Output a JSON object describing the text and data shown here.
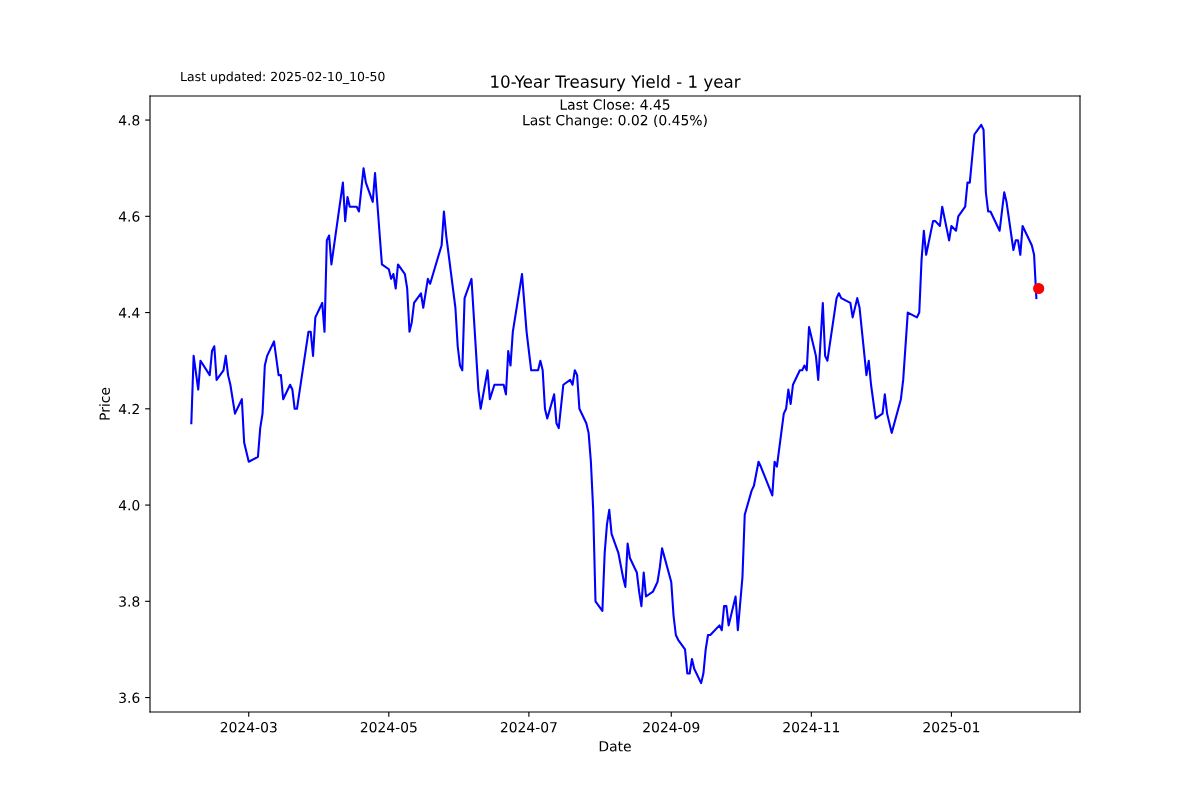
{
  "chart_data": {
    "type": "line",
    "title": "10-Year Treasury Yield - 1 year",
    "xlabel": "Date",
    "ylabel": "Price",
    "annotations": [
      "Last updated: 2025-02-10_10-50",
      "Last Close: 4.45\nLast Change: 0.02 (0.45%)"
    ],
    "series": [
      {
        "color": "#0000ff",
        "x": [
          "2024-02-05",
          "2024-02-06",
          "2024-02-08",
          "2024-02-09",
          "2024-02-13",
          "2024-02-14",
          "2024-02-15",
          "2024-02-16",
          "2024-02-19",
          "2024-02-20",
          "2024-02-21",
          "2024-02-22",
          "2024-02-24",
          "2024-02-27",
          "2024-02-28",
          "2024-03-01",
          "2024-03-05",
          "2024-03-06",
          "2024-03-07",
          "2024-03-08",
          "2024-03-09",
          "2024-03-12",
          "2024-03-14",
          "2024-03-15",
          "2024-03-16",
          "2024-03-19",
          "2024-03-20",
          "2024-03-21",
          "2024-03-22",
          "2024-03-27",
          "2024-03-28",
          "2024-03-29",
          "2024-03-30",
          "2024-04-02",
          "2024-04-03",
          "2024-04-04",
          "2024-04-05",
          "2024-04-06",
          "2024-04-11",
          "2024-04-12",
          "2024-04-13",
          "2024-04-14",
          "2024-04-17",
          "2024-04-18",
          "2024-04-20",
          "2024-04-21",
          "2024-04-24",
          "2024-04-25",
          "2024-04-28",
          "2024-05-01",
          "2024-05-02",
          "2024-05-03",
          "2024-05-04",
          "2024-05-05",
          "2024-05-08",
          "2024-05-09",
          "2024-05-10",
          "2024-05-11",
          "2024-05-12",
          "2024-05-15",
          "2024-05-16",
          "2024-05-18",
          "2024-05-19",
          "2024-05-24",
          "2024-05-25",
          "2024-05-26",
          "2024-05-30",
          "2024-05-31",
          "2024-06-01",
          "2024-06-02",
          "2024-06-03",
          "2024-06-06",
          "2024-06-09",
          "2024-06-10",
          "2024-06-13",
          "2024-06-14",
          "2024-06-16",
          "2024-06-20",
          "2024-06-21",
          "2024-06-22",
          "2024-06-23",
          "2024-06-24",
          "2024-06-28",
          "2024-06-30",
          "2024-07-02",
          "2024-07-05",
          "2024-07-06",
          "2024-07-07",
          "2024-07-08",
          "2024-07-09",
          "2024-07-12",
          "2024-07-13",
          "2024-07-14",
          "2024-07-16",
          "2024-07-19",
          "2024-07-20",
          "2024-07-21",
          "2024-07-22",
          "2024-07-23",
          "2024-07-26",
          "2024-07-27",
          "2024-07-28",
          "2024-07-29",
          "2024-07-30",
          "2024-08-02",
          "2024-08-03",
          "2024-08-04",
          "2024-08-05",
          "2024-08-06",
          "2024-08-09",
          "2024-08-11",
          "2024-08-12",
          "2024-08-13",
          "2024-08-14",
          "2024-08-17",
          "2024-08-18",
          "2024-08-19",
          "2024-08-20",
          "2024-08-21",
          "2024-08-24",
          "2024-08-26",
          "2024-08-27",
          "2024-08-28",
          "2024-09-01",
          "2024-09-02",
          "2024-09-03",
          "2024-09-04",
          "2024-09-07",
          "2024-09-08",
          "2024-09-09",
          "2024-09-10",
          "2024-09-11",
          "2024-09-14",
          "2024-09-15",
          "2024-09-16",
          "2024-09-17",
          "2024-09-18",
          "2024-09-22",
          "2024-09-23",
          "2024-09-24",
          "2024-09-25",
          "2024-09-26",
          "2024-09-29",
          "2024-09-30",
          "2024-10-02",
          "2024-10-03",
          "2024-10-06",
          "2024-10-07",
          "2024-10-09",
          "2024-10-10",
          "2024-10-15",
          "2024-10-16",
          "2024-10-17",
          "2024-10-20",
          "2024-10-21",
          "2024-10-22",
          "2024-10-23",
          "2024-10-24",
          "2024-10-27",
          "2024-10-28",
          "2024-10-29",
          "2024-10-30",
          "2024-10-31",
          "2024-11-03",
          "2024-11-04",
          "2024-11-06",
          "2024-11-07",
          "2024-11-08",
          "2024-11-12",
          "2024-11-13",
          "2024-11-14",
          "2024-11-18",
          "2024-11-19",
          "2024-11-21",
          "2024-11-22",
          "2024-11-25",
          "2024-11-26",
          "2024-11-27",
          "2024-11-29",
          "2024-12-02",
          "2024-12-03",
          "2024-12-04",
          "2024-12-06",
          "2024-12-10",
          "2024-12-11",
          "2024-12-13",
          "2024-12-17",
          "2024-12-18",
          "2024-12-19",
          "2024-12-20",
          "2024-12-21",
          "2024-12-24",
          "2024-12-25",
          "2024-12-27",
          "2024-12-28",
          "2024-12-31",
          "2025-01-01",
          "2025-01-03",
          "2025-01-04",
          "2025-01-07",
          "2025-01-08",
          "2025-01-09",
          "2025-01-11",
          "2025-01-14",
          "2025-01-15",
          "2025-01-16",
          "2025-01-17",
          "2025-01-18",
          "2025-01-22",
          "2025-01-24",
          "2025-01-25",
          "2025-01-28",
          "2025-01-29",
          "2025-01-30",
          "2025-01-31",
          "2025-02-01",
          "2025-02-05",
          "2025-02-06",
          "2025-02-07"
        ],
        "values": [
          4.17,
          4.31,
          4.24,
          4.3,
          4.27,
          4.32,
          4.33,
          4.26,
          4.28,
          4.31,
          4.27,
          4.25,
          4.19,
          4.22,
          4.13,
          4.09,
          4.1,
          4.16,
          4.19,
          4.29,
          4.31,
          4.34,
          4.27,
          4.27,
          4.22,
          4.25,
          4.24,
          4.2,
          4.2,
          4.36,
          4.36,
          4.31,
          4.39,
          4.42,
          4.36,
          4.55,
          4.56,
          4.5,
          4.67,
          4.59,
          4.64,
          4.62,
          4.62,
          4.61,
          4.7,
          4.67,
          4.63,
          4.69,
          4.5,
          4.49,
          4.47,
          4.48,
          4.45,
          4.5,
          4.48,
          4.45,
          4.36,
          4.38,
          4.42,
          4.44,
          4.41,
          4.47,
          4.46,
          4.54,
          4.61,
          4.56,
          4.41,
          4.33,
          4.29,
          4.28,
          4.43,
          4.47,
          4.24,
          4.2,
          4.28,
          4.22,
          4.25,
          4.25,
          4.23,
          4.32,
          4.29,
          4.36,
          4.48,
          4.36,
          4.28,
          4.28,
          4.3,
          4.28,
          4.2,
          4.18,
          4.23,
          4.17,
          4.16,
          4.25,
          4.26,
          4.25,
          4.28,
          4.27,
          4.2,
          4.17,
          4.15,
          4.09,
          3.99,
          3.8,
          3.78,
          3.9,
          3.96,
          3.99,
          3.94,
          3.9,
          3.85,
          3.83,
          3.92,
          3.89,
          3.86,
          3.82,
          3.79,
          3.86,
          3.81,
          3.82,
          3.84,
          3.87,
          3.91,
          3.84,
          3.77,
          3.73,
          3.72,
          3.7,
          3.65,
          3.65,
          3.68,
          3.66,
          3.63,
          3.65,
          3.7,
          3.73,
          3.73,
          3.75,
          3.74,
          3.79,
          3.79,
          3.75,
          3.81,
          3.74,
          3.85,
          3.98,
          4.03,
          4.04,
          4.09,
          4.08,
          4.02,
          4.09,
          4.08,
          4.19,
          4.2,
          4.24,
          4.21,
          4.25,
          4.28,
          4.28,
          4.29,
          4.28,
          4.37,
          4.31,
          4.26,
          4.42,
          4.31,
          4.3,
          4.43,
          4.44,
          4.43,
          4.42,
          4.39,
          4.43,
          4.41,
          4.27,
          4.3,
          4.25,
          4.18,
          4.19,
          4.23,
          4.19,
          4.15,
          4.22,
          4.26,
          4.4,
          4.39,
          4.4,
          4.51,
          4.57,
          4.52,
          4.59,
          4.59,
          4.58,
          4.62,
          4.55,
          4.58,
          4.57,
          4.6,
          4.62,
          4.67,
          4.67,
          4.77,
          4.79,
          4.78,
          4.65,
          4.61,
          4.61,
          4.57,
          4.65,
          4.63,
          4.53,
          4.55,
          4.55,
          4.52,
          4.58,
          4.54,
          4.52,
          4.43
        ]
      },
      {
        "type": "scatter",
        "color": "#ff0000",
        "marker": "circle",
        "x": [
          "2025-02-08"
        ],
        "values": [
          4.45
        ]
      }
    ],
    "xlim": [
      "2024-01-18",
      "2025-02-26"
    ],
    "xticks": [
      {
        "value": "2024-03-01",
        "label": "2024-03"
      },
      {
        "value": "2024-05-01",
        "label": "2024-05"
      },
      {
        "value": "2024-07-01",
        "label": "2024-07"
      },
      {
        "value": "2024-09-01",
        "label": "2024-09"
      },
      {
        "value": "2024-11-01",
        "label": "2024-11"
      },
      {
        "value": "2025-01-01",
        "label": "2025-01"
      }
    ],
    "ylim": [
      3.57,
      4.85
    ],
    "yticks": [
      3.6,
      3.8,
      {
        "value": 4.0,
        "label": "4.0"
      },
      4.2,
      4.4,
      4.6,
      4.8
    ],
    "grid": false
  }
}
